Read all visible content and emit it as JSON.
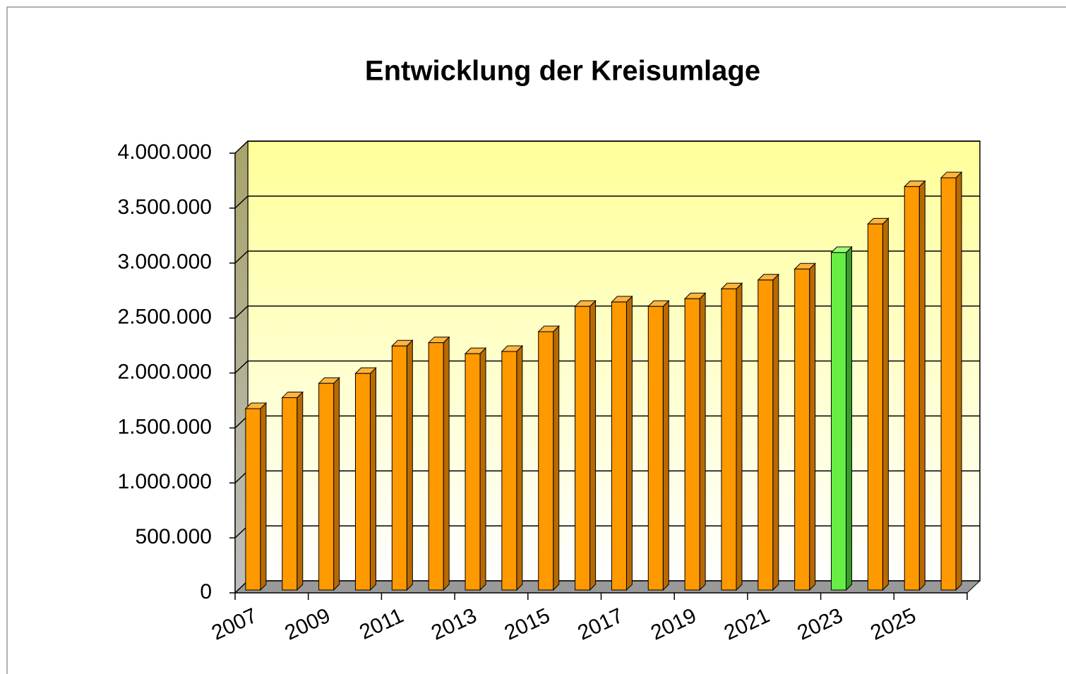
{
  "chart_data": {
    "type": "bar3d",
    "title": "Entwicklung der Kreisumlage",
    "categories": [
      "2007",
      null,
      "2009",
      null,
      "2011",
      null,
      "2013",
      null,
      "2015",
      null,
      "2017",
      null,
      "2019",
      null,
      "2021",
      null,
      "2023",
      null,
      "2025",
      null
    ],
    "values": [
      1650000,
      1750000,
      1880000,
      1970000,
      2220000,
      2250000,
      2150000,
      2170000,
      2350000,
      2580000,
      2620000,
      2580000,
      2650000,
      2740000,
      2820000,
      2920000,
      3070000,
      3330000,
      3670000,
      3750000
    ],
    "colors": [
      "#ff9900",
      "#ff9900",
      "#ff9900",
      "#ff9900",
      "#ff9900",
      "#ff9900",
      "#ff9900",
      "#ff9900",
      "#ff9900",
      "#ff9900",
      "#ff9900",
      "#ff9900",
      "#ff9900",
      "#ff9900",
      "#ff9900",
      "#ff9900",
      "#66ee44",
      "#ff9900",
      "#ff9900",
      "#ff9900"
    ],
    "ylim": [
      0,
      4000000
    ],
    "yticks": [
      0,
      {
        "value": 500000,
        "label": "500.000"
      },
      {
        "value": 1000000,
        "label": "1.000.000"
      },
      {
        "value": 1500000,
        "label": "1.500.000"
      },
      {
        "value": 2000000,
        "label": "2.000.000"
      },
      {
        "value": 2500000,
        "label": "2.500.000"
      },
      {
        "value": 3000000,
        "label": "3.000.000"
      },
      {
        "value": 3500000,
        "label": "3.500.000"
      },
      {
        "value": 4000000,
        "label": "4.000.000"
      }
    ],
    "grid": true
  }
}
